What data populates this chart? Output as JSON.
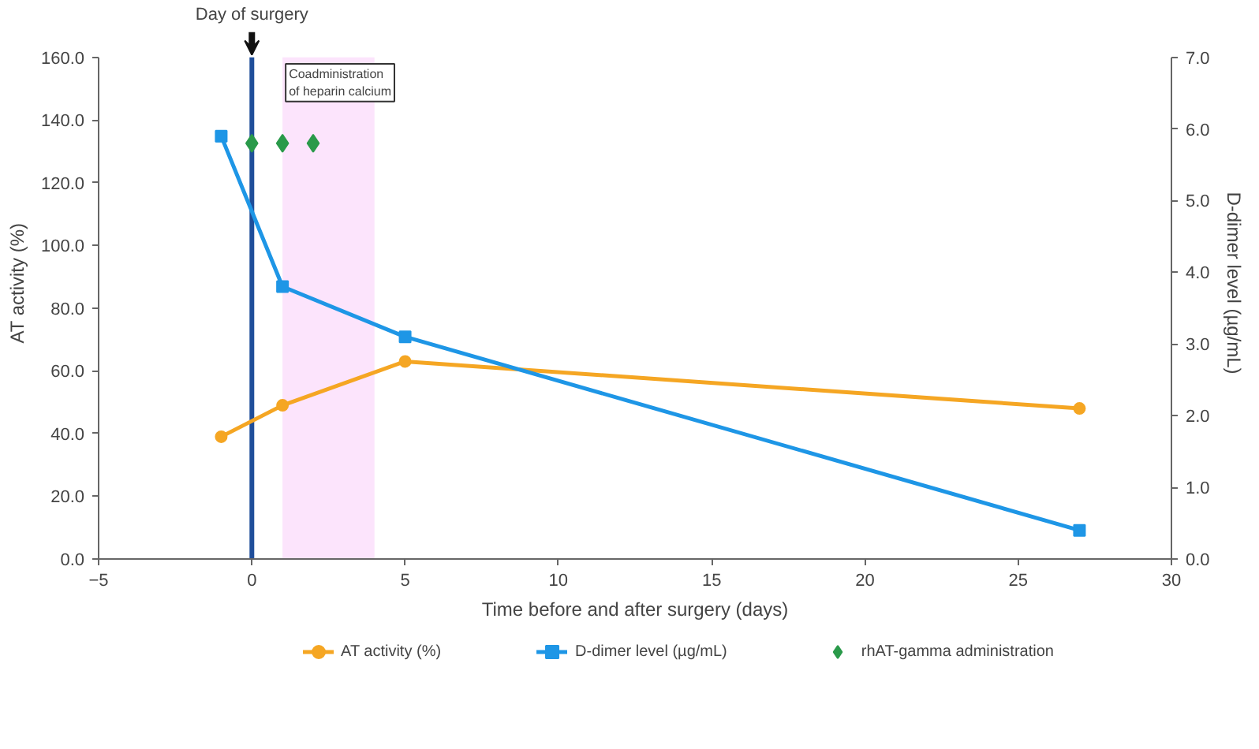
{
  "chart_data": {
    "type": "line",
    "xlabel": "Time before and after surgery (days)",
    "ylabel": "AT activity (%)",
    "y2label": "D-dimer level (µg/mL)",
    "x": [
      -1,
      1,
      5,
      27
    ],
    "series": [
      {
        "name": "AT activity (%)",
        "color": "#f5a623",
        "values": [
          39,
          49,
          63,
          48
        ],
        "marker": "circle"
      },
      {
        "name": "D-dimer level (µg/mL)",
        "color": "#1e96e6",
        "values": [
          5.9,
          3.8,
          3.1,
          0.4
        ],
        "axis": "y2",
        "marker": "square"
      },
      {
        "name": "rhAT-gamma administration",
        "type": "scatter",
        "color": "#2a9a4a",
        "x": [
          0,
          1,
          2
        ],
        "values": [
          5.8,
          5.8,
          5.8
        ],
        "axis": "y2",
        "marker": "diamond"
      }
    ],
    "xlim": [
      -5,
      30
    ],
    "xticks": [
      -5,
      0,
      5,
      10,
      15,
      20,
      25,
      30
    ],
    "ylim": [
      0,
      160
    ],
    "yticks": [
      {
        "value": 0,
        "label": "0.0"
      },
      {
        "value": 20,
        "label": "20.0"
      },
      {
        "value": 40,
        "label": "40.0"
      },
      {
        "value": 60,
        "label": "60.0"
      },
      {
        "value": 80,
        "label": "80.0"
      },
      {
        "value": 100,
        "label": "100.0"
      },
      {
        "value": 120,
        "label": "120.0"
      },
      {
        "value": 140,
        "label": "140.0"
      },
      {
        "value": 160,
        "label": "160.0"
      }
    ],
    "y2lim": [
      0,
      7
    ],
    "y2ticks": [
      {
        "value": 0,
        "label": "0.0"
      },
      {
        "value": 1,
        "label": "1.0"
      },
      {
        "value": 2,
        "label": "2.0"
      },
      {
        "value": 3,
        "label": "3.0"
      },
      {
        "value": 4,
        "label": "4.0"
      },
      {
        "value": 5,
        "label": "5.0"
      },
      {
        "value": 6,
        "label": "6.0"
      },
      {
        "value": 7,
        "label": "7.0"
      }
    ],
    "ref_lines": [
      {
        "axis": "x",
        "value": 0,
        "label": "Day of surgery",
        "color": "#1f4e9a"
      }
    ],
    "bands": [
      {
        "axis": "x",
        "from": 1,
        "to": 4,
        "label": "Coadministration\nof heparin calcium",
        "color": "#fce4fc"
      }
    ],
    "grid": false,
    "legend": "bottom"
  }
}
